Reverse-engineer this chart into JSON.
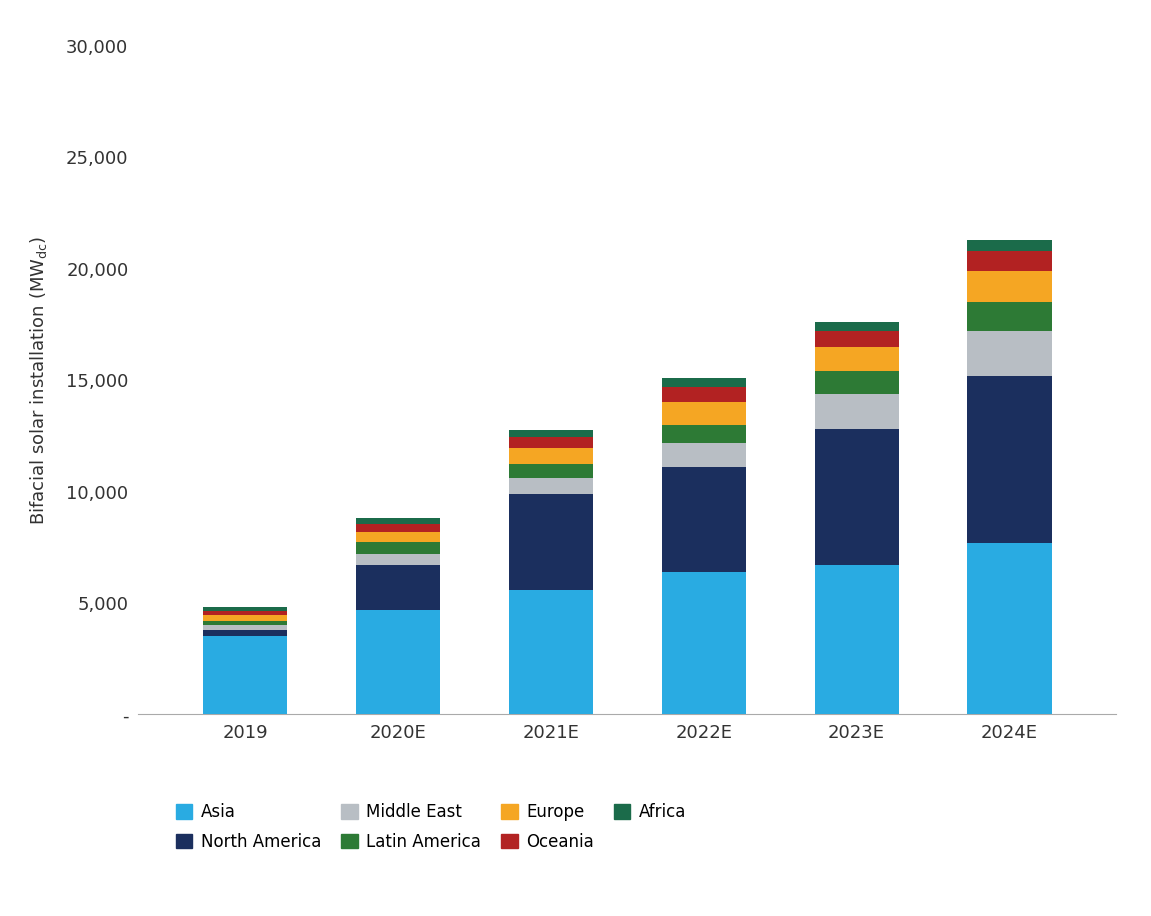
{
  "categories": [
    "2019",
    "2020E",
    "2021E",
    "2022E",
    "2023E",
    "2024E"
  ],
  "series": {
    "Asia": [
      3500,
      4700,
      5600,
      6400,
      6700,
      7700
    ],
    "North America": [
      300,
      2000,
      4300,
      4700,
      6100,
      7500
    ],
    "Middle East": [
      200,
      500,
      700,
      1100,
      1600,
      2000
    ],
    "Latin America": [
      200,
      550,
      650,
      800,
      1000,
      1300
    ],
    "Europe": [
      250,
      450,
      700,
      1000,
      1100,
      1400
    ],
    "Oceania": [
      200,
      350,
      500,
      700,
      700,
      900
    ],
    "Africa": [
      150,
      250,
      300,
      400,
      400,
      500
    ]
  },
  "colors": {
    "Asia": "#29ABE2",
    "North America": "#1B2F5E",
    "Middle East": "#B8BEC4",
    "Latin America": "#2D7A35",
    "Europe": "#F5A623",
    "Oceania": "#B22222",
    "Africa": "#1B6B4A"
  },
  "ylim": [
    0,
    30000
  ],
  "yticks": [
    0,
    5000,
    10000,
    15000,
    20000,
    25000,
    30000
  ],
  "ytick_labels": [
    "-",
    "5,000",
    "10,000",
    "15,000",
    "20,000",
    "25,000",
    "30,000"
  ],
  "background_color": "#ffffff",
  "legend_row1": [
    "Asia",
    "North America",
    "Middle East",
    "Latin America"
  ],
  "legend_row2": [
    "Europe",
    "Oceania",
    "Africa"
  ]
}
